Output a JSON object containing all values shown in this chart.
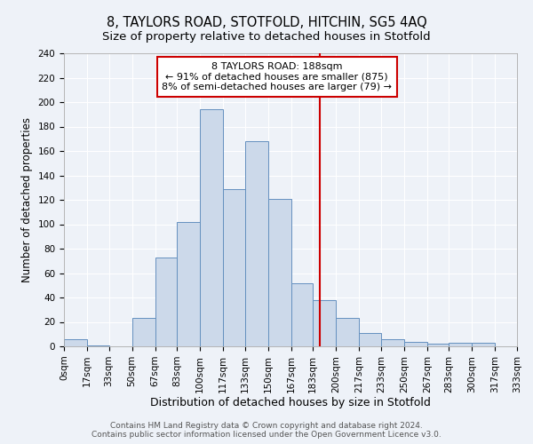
{
  "title": "8, TAYLORS ROAD, STOTFOLD, HITCHIN, SG5 4AQ",
  "subtitle": "Size of property relative to detached houses in Stotfold",
  "xlabel": "Distribution of detached houses by size in Stotfold",
  "ylabel": "Number of detached properties",
  "bin_edges": [
    0,
    17,
    33,
    50,
    67,
    83,
    100,
    117,
    133,
    150,
    167,
    183,
    200,
    217,
    233,
    250,
    267,
    283,
    300,
    317,
    333
  ],
  "bar_heights": [
    6,
    1,
    0,
    23,
    73,
    102,
    194,
    129,
    168,
    121,
    52,
    38,
    23,
    11,
    6,
    4,
    2,
    3,
    3,
    0
  ],
  "bar_facecolor": "#ccd9ea",
  "bar_edgecolor": "#6490bf",
  "vline_x": 188,
  "vline_color": "#cc0000",
  "ylim": [
    0,
    240
  ],
  "yticks": [
    0,
    20,
    40,
    60,
    80,
    100,
    120,
    140,
    160,
    180,
    200,
    220,
    240
  ],
  "tick_labels": [
    "0sqm",
    "17sqm",
    "33sqm",
    "50sqm",
    "67sqm",
    "83sqm",
    "100sqm",
    "117sqm",
    "133sqm",
    "150sqm",
    "167sqm",
    "183sqm",
    "200sqm",
    "217sqm",
    "233sqm",
    "250sqm",
    "267sqm",
    "283sqm",
    "300sqm",
    "317sqm",
    "333sqm"
  ],
  "annotation_title": "8 TAYLORS ROAD: 188sqm",
  "annotation_line1": "← 91% of detached houses are smaller (875)",
  "annotation_line2": "8% of semi-detached houses are larger (79) →",
  "footer1": "Contains HM Land Registry data © Crown copyright and database right 2024.",
  "footer2": "Contains public sector information licensed under the Open Government Licence v3.0.",
  "bg_color": "#eef2f8",
  "grid_color": "#ffffff",
  "title_fontsize": 10.5,
  "subtitle_fontsize": 9.5,
  "xlabel_fontsize": 9,
  "ylabel_fontsize": 8.5,
  "tick_fontsize": 7.5,
  "annot_fontsize": 8,
  "footer_fontsize": 6.5
}
